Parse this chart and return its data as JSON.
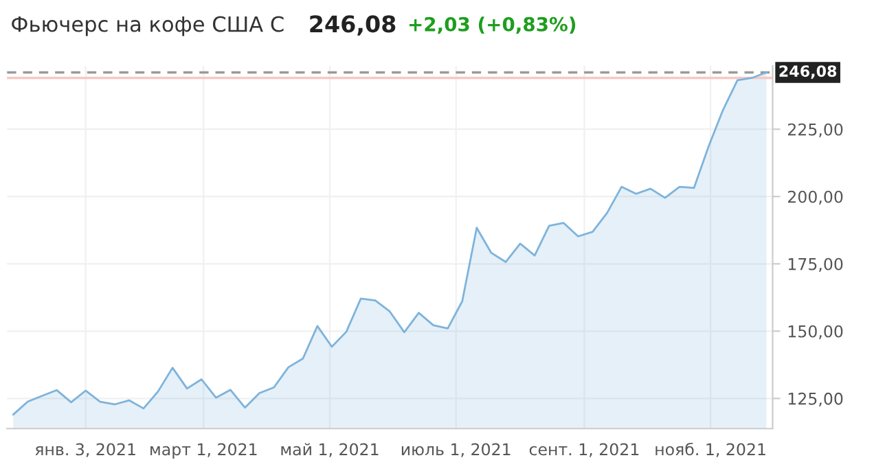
{
  "chart_data": {
    "type": "area",
    "title": "Фьючерс на кофе США С",
    "annotations": [
      "246,08",
      "+2,03 (+0,83%)"
    ],
    "x": [
      "2020-11-29",
      "2020-12-06",
      "2020-12-13",
      "2020-12-20",
      "2020-12-27",
      "2021-01-03",
      "2021-01-10",
      "2021-01-17",
      "2021-01-24",
      "2021-01-31",
      "2021-02-07",
      "2021-02-14",
      "2021-02-21",
      "2021-02-28",
      "2021-03-07",
      "2021-03-14",
      "2021-03-21",
      "2021-03-28",
      "2021-04-04",
      "2021-04-11",
      "2021-04-18",
      "2021-04-25",
      "2021-05-02",
      "2021-05-09",
      "2021-05-16",
      "2021-05-23",
      "2021-05-30",
      "2021-06-06",
      "2021-06-13",
      "2021-06-20",
      "2021-06-27",
      "2021-07-04",
      "2021-07-11",
      "2021-07-18",
      "2021-07-25",
      "2021-08-01",
      "2021-08-08",
      "2021-08-15",
      "2021-08-22",
      "2021-08-29",
      "2021-09-05",
      "2021-09-12",
      "2021-09-19",
      "2021-09-26",
      "2021-10-03",
      "2021-10-10",
      "2021-10-17",
      "2021-10-24",
      "2021-10-31",
      "2021-11-07",
      "2021-11-14",
      "2021-11-21",
      "2021-11-28"
    ],
    "series": [
      {
        "color": "#7eb3db",
        "values": [
          119.0,
          123.8,
          126.0,
          128.1,
          123.6,
          127.9,
          123.8,
          122.8,
          124.3,
          121.3,
          127.6,
          136.4,
          128.7,
          132.1,
          125.3,
          128.2,
          121.6,
          127.0,
          129.1,
          136.6,
          139.8,
          151.9,
          144.2,
          149.8,
          162.1,
          161.4,
          157.3,
          149.6,
          156.8,
          152.2,
          151.0,
          161.1,
          188.4,
          179.1,
          175.7,
          182.5,
          178.1,
          189.1,
          190.2,
          185.2,
          186.9,
          193.9,
          203.6,
          201.0,
          202.9,
          199.5,
          203.6,
          203.2,
          218.5,
          232.1,
          243.2,
          244.05,
          246.08
        ]
      }
    ],
    "xlim": [
      "2020-11-26",
      "2021-12-01"
    ],
    "xticks": [
      {
        "value": "2021-01-03",
        "label": "янв. 3, 2021"
      },
      {
        "value": "2021-03-01",
        "label": "март 1, 2021"
      },
      {
        "value": "2021-05-01",
        "label": "май 1, 2021"
      },
      {
        "value": "2021-07-01",
        "label": "июль 1, 2021"
      },
      {
        "value": "2021-09-01",
        "label": "сент. 1, 2021"
      },
      {
        "value": "2021-11-01",
        "label": "нояб. 1, 2021"
      }
    ],
    "ylim": [
      113.8,
      248.5
    ],
    "yticks": [
      {
        "value": 125,
        "label": "125,00"
      },
      {
        "value": 150,
        "label": "150,00"
      },
      {
        "value": 175,
        "label": "175,00"
      },
      {
        "value": 200,
        "label": "200,00"
      },
      {
        "value": 225,
        "label": "225,00"
      }
    ],
    "ref_lines": [
      {
        "axis": "y",
        "value": 246.08,
        "label": "246,08",
        "color": "#999999",
        "line_style": "dashed"
      },
      {
        "axis": "y",
        "value": 244.05,
        "color": "#f8c8c4",
        "line_style": "solid"
      }
    ],
    "grid": true,
    "legend": false
  }
}
